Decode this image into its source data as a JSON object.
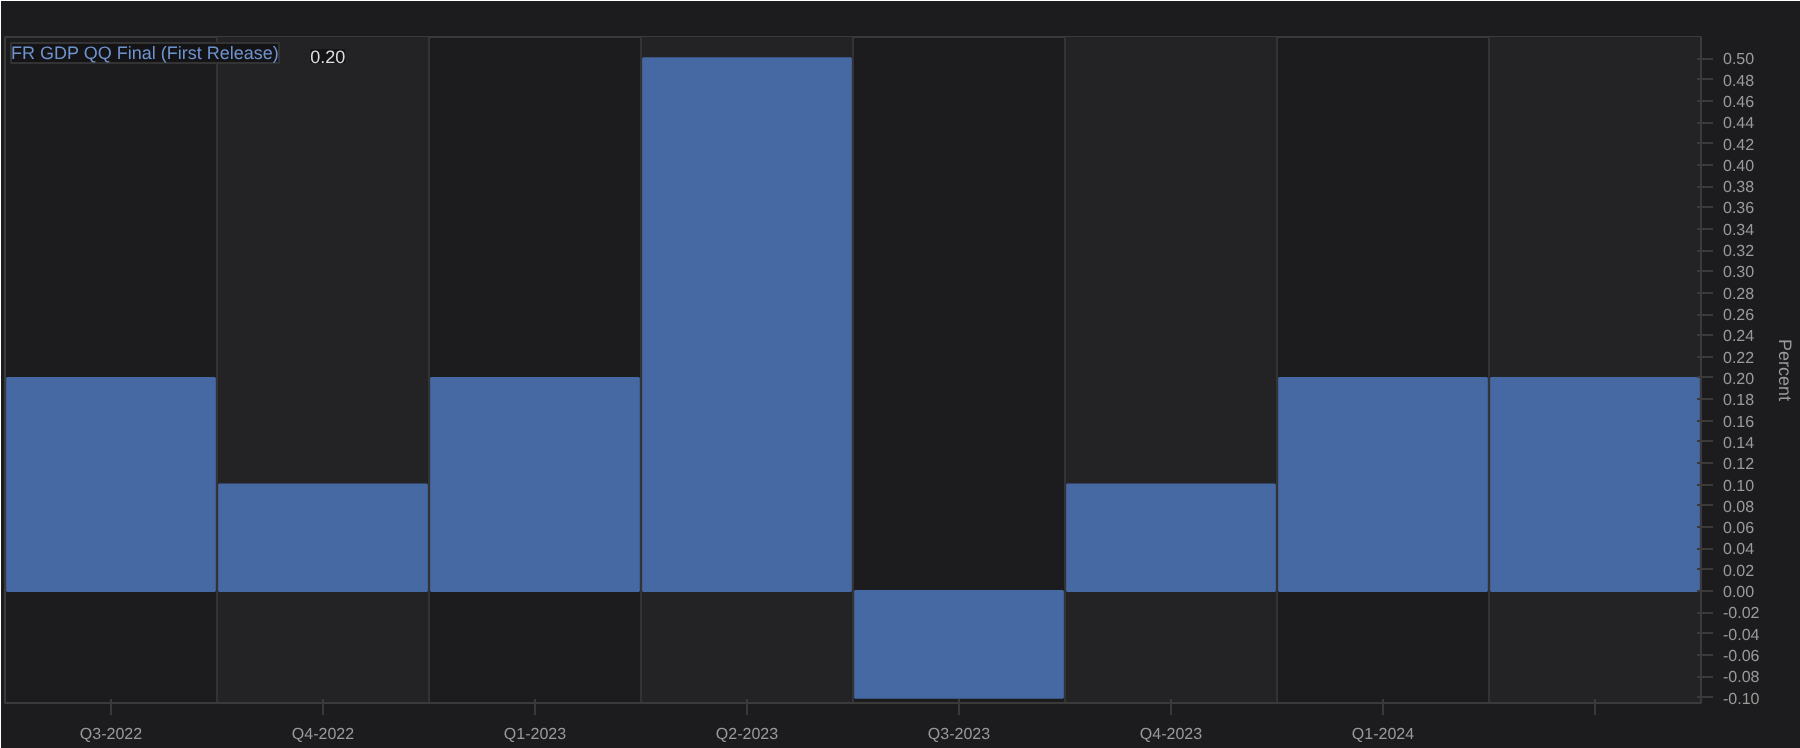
{
  "chart_data": {
    "type": "bar",
    "categories": [
      "Q3-2022",
      "Q4-2022",
      "Q1-2023",
      "Q2-2023",
      "Q3-2023",
      "Q4-2023",
      "Q1-2024",
      null
    ],
    "series": [
      {
        "name": "FR GDP QQ Final (First Release)",
        "color": "#4668a3",
        "values": [
          0.2,
          0.1,
          0.2,
          0.5,
          -0.1,
          0.1,
          0.2,
          0.2
        ]
      }
    ],
    "ylabel": "Percent",
    "ylim": [
      -0.105,
      0.52
    ],
    "yticks": [
      {
        "value": -0.1,
        "label": "-0.10"
      },
      {
        "value": -0.08,
        "label": "-0.08"
      },
      {
        "value": -0.06,
        "label": "-0.06"
      },
      {
        "value": -0.04,
        "label": "-0.04"
      },
      {
        "value": -0.02,
        "label": "-0.02"
      },
      {
        "value": 0,
        "label": "0.00"
      },
      {
        "value": 0.02,
        "label": "0.02"
      },
      {
        "value": 0.04,
        "label": "0.04"
      },
      {
        "value": 0.06,
        "label": "0.06"
      },
      {
        "value": 0.08,
        "label": "0.08"
      },
      {
        "value": 0.1,
        "label": "0.10"
      },
      {
        "value": 0.12,
        "label": "0.12"
      },
      {
        "value": 0.14,
        "label": "0.14"
      },
      {
        "value": 0.16,
        "label": "0.16"
      },
      {
        "value": 0.18,
        "label": "0.18"
      },
      {
        "value": 0.2,
        "label": "0.20"
      },
      {
        "value": 0.22,
        "label": "0.22"
      },
      {
        "value": 0.24,
        "label": "0.24"
      },
      {
        "value": 0.26,
        "label": "0.26"
      },
      {
        "value": 0.28,
        "label": "0.28"
      },
      {
        "value": 0.3,
        "label": "0.30"
      },
      {
        "value": 0.32,
        "label": "0.32"
      },
      {
        "value": 0.34,
        "label": "0.34"
      },
      {
        "value": 0.36,
        "label": "0.36"
      },
      {
        "value": 0.38,
        "label": "0.38"
      },
      {
        "value": 0.4,
        "label": "0.40"
      },
      {
        "value": 0.42,
        "label": "0.42"
      },
      {
        "value": 0.44,
        "label": "0.44"
      },
      {
        "value": 0.46,
        "label": "0.46"
      },
      {
        "value": 0.48,
        "label": "0.48"
      },
      {
        "value": 0.5,
        "label": "0.50"
      }
    ],
    "annotations": [
      "0.20"
    ],
    "grid": "x"
  }
}
